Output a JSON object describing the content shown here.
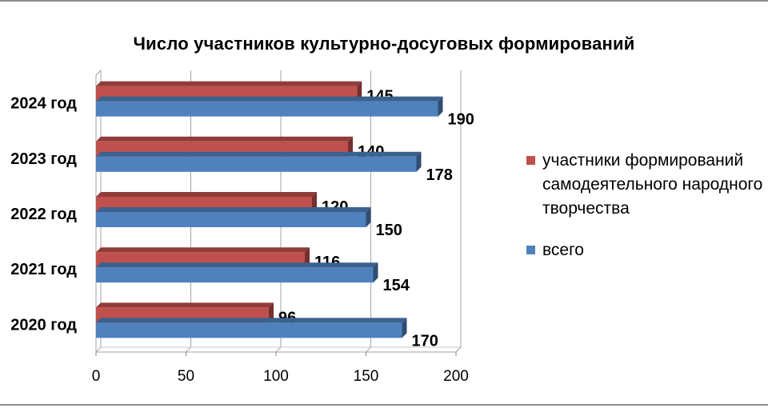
{
  "chart_data": {
    "type": "bar",
    "orientation": "horizontal",
    "title": "Число участников культурно-досуговых формирований",
    "categories": [
      "2024 год",
      "2023 год",
      "2022 год",
      "2021 год",
      "2020 год"
    ],
    "series": [
      {
        "name": "участники формирований самодеятельного народного творчества",
        "values": [
          145,
          140,
          120,
          116,
          96
        ],
        "color": "#c0504d"
      },
      {
        "name": "всего",
        "values": [
          190,
          178,
          150,
          154,
          170
        ],
        "color": "#4f81bd"
      }
    ],
    "xlim": [
      0,
      200
    ],
    "x_ticks": [
      "0",
      "50",
      "100",
      "150",
      "200"
    ],
    "grid": "vertical",
    "legend": "right",
    "style": "3d"
  }
}
